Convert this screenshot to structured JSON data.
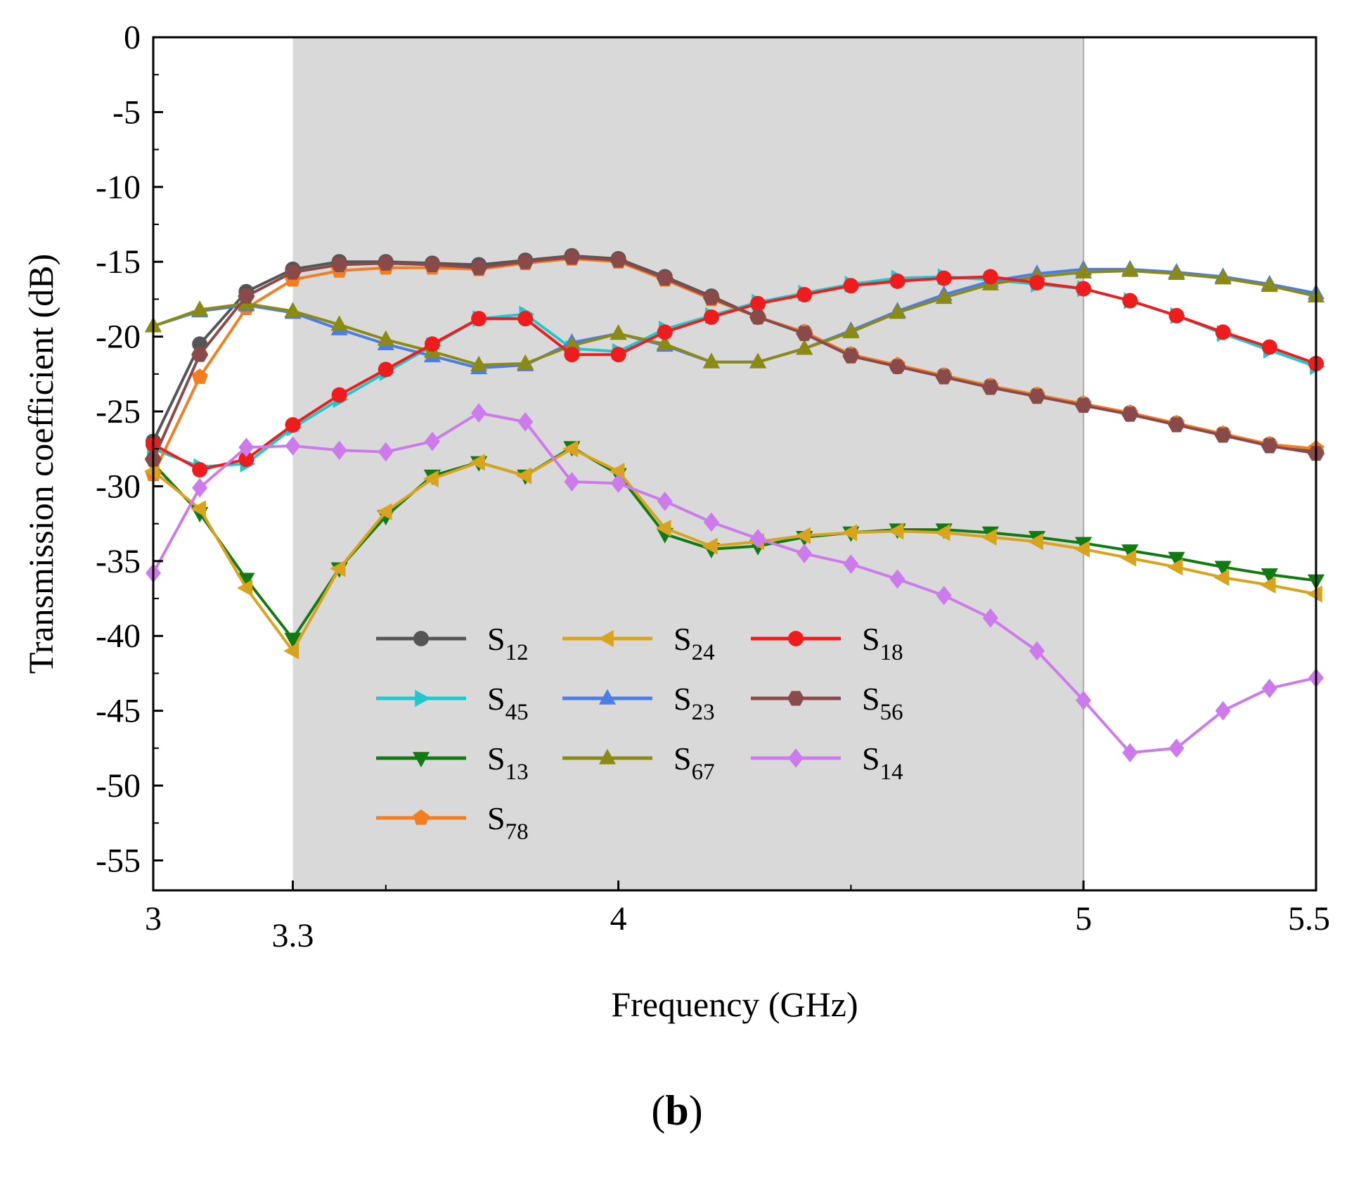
{
  "panel_label": {
    "open": "(",
    "letter": "b",
    "close": ")"
  },
  "chart_data": {
    "type": "line",
    "xlabel": "Frequency (GHz)",
    "ylabel": "Transmission coefficient (dB)",
    "xlim": [
      3,
      5.5
    ],
    "ylim": [
      -57,
      0
    ],
    "xticks": [
      3,
      3.3,
      4,
      5,
      5.5
    ],
    "xtick_labels": [
      "3",
      "3.3",
      "4",
      "5",
      "5.5"
    ],
    "yticks": [
      0,
      -5,
      -10,
      -15,
      -20,
      -25,
      -30,
      -35,
      -40,
      -45,
      -50,
      -55
    ],
    "ytick_labels": [
      "0",
      "-5",
      "-10",
      "-15",
      "-20",
      "-25",
      "-30",
      "-35",
      "-40",
      "-45",
      "-50",
      "-55"
    ],
    "shaded_band": [
      3.3,
      5.0
    ],
    "grid": false,
    "legend_placement": "lower-center",
    "x": [
      3.0,
      3.1,
      3.2,
      3.3,
      3.4,
      3.5,
      3.6,
      3.7,
      3.8,
      3.9,
      4.0,
      4.1,
      4.2,
      4.3,
      4.4,
      4.5,
      4.6,
      4.7,
      4.8,
      4.9,
      5.0,
      5.1,
      5.2,
      5.3,
      5.4,
      5.5
    ],
    "series": [
      {
        "name": "S",
        "sub": "12",
        "color": "#555555",
        "marker": "circle",
        "values": [
          -27.0,
          -20.5,
          -17.0,
          -15.5,
          -15.0,
          -15.0,
          -15.1,
          -15.2,
          -14.9,
          -14.6,
          -14.8,
          -16.0,
          -17.3,
          -18.7,
          -19.7,
          -21.2,
          -22.0,
          -22.6,
          -23.3,
          -23.9,
          -24.5,
          -25.1,
          -25.8,
          -26.5,
          -27.2,
          -27.7
        ]
      },
      {
        "name": "S",
        "sub": "45",
        "color": "#1ec8cc",
        "marker": "triangle-right",
        "values": [
          -27.5,
          -28.7,
          -28.5,
          -26.1,
          -24.2,
          -22.4,
          -20.6,
          -18.8,
          -18.5,
          -20.8,
          -21.0,
          -19.5,
          -18.6,
          -17.7,
          -17.1,
          -16.5,
          -16.1,
          -16.0,
          -16.2,
          -16.5,
          -16.8,
          -17.6,
          -18.6,
          -19.8,
          -20.9,
          -22.0
        ]
      },
      {
        "name": "S",
        "sub": "13",
        "color": "#127a12",
        "marker": "triangle-down",
        "values": [
          -28.5,
          -31.8,
          -36.2,
          -40.2,
          -35.5,
          -32.0,
          -29.3,
          -28.4,
          -29.3,
          -27.4,
          -29.2,
          -33.2,
          -34.2,
          -34.0,
          -33.4,
          -33.1,
          -32.9,
          -32.9,
          -33.1,
          -33.4,
          -33.8,
          -34.3,
          -34.8,
          -35.4,
          -35.9,
          -36.3
        ]
      },
      {
        "name": "S",
        "sub": "78",
        "color": "#f47d20",
        "marker": "pentagon",
        "values": [
          -29.2,
          -22.7,
          -18.1,
          -16.2,
          -15.6,
          -15.4,
          -15.4,
          -15.5,
          -15.1,
          -14.8,
          -15.0,
          -16.2,
          -17.5,
          -18.7,
          -19.7,
          -21.2,
          -21.9,
          -22.6,
          -23.3,
          -23.9,
          -24.5,
          -25.1,
          -25.8,
          -26.5,
          -27.2,
          -27.5
        ]
      },
      {
        "name": "S",
        "sub": "24",
        "color": "#d9a41c",
        "marker": "triangle-left",
        "values": [
          -29.0,
          -31.5,
          -36.8,
          -41.0,
          -35.5,
          -31.7,
          -29.5,
          -28.4,
          -29.3,
          -27.5,
          -29.0,
          -32.8,
          -34.0,
          -33.7,
          -33.3,
          -33.1,
          -33.0,
          -33.1,
          -33.4,
          -33.7,
          -34.2,
          -34.8,
          -35.4,
          -36.1,
          -36.6,
          -37.2
        ]
      },
      {
        "name": "S",
        "sub": "23",
        "color": "#4b7de6",
        "marker": "triangle-up",
        "values": [
          -19.3,
          -18.3,
          -17.9,
          -18.4,
          -19.5,
          -20.5,
          -21.3,
          -22.1,
          -21.9,
          -20.4,
          -19.8,
          -20.6,
          -21.7,
          -21.7,
          -20.8,
          -19.6,
          -18.3,
          -17.2,
          -16.3,
          -15.8,
          -15.5,
          -15.5,
          -15.7,
          -16.0,
          -16.5,
          -17.1
        ]
      },
      {
        "name": "S",
        "sub": "67",
        "color": "#8a8a14",
        "marker": "triangle-up",
        "values": [
          -19.3,
          -18.2,
          -17.8,
          -18.3,
          -19.2,
          -20.2,
          -21.0,
          -21.9,
          -21.8,
          -20.6,
          -19.8,
          -20.5,
          -21.7,
          -21.7,
          -20.8,
          -19.7,
          -18.4,
          -17.4,
          -16.5,
          -16.0,
          -15.7,
          -15.6,
          -15.8,
          -16.1,
          -16.6,
          -17.3
        ]
      },
      {
        "name": "S",
        "sub": "18",
        "color": "#ee1c1c",
        "marker": "circle",
        "values": [
          -27.2,
          -28.9,
          -28.2,
          -25.9,
          -23.9,
          -22.2,
          -20.5,
          -18.8,
          -18.8,
          -21.2,
          -21.2,
          -19.7,
          -18.7,
          -17.8,
          -17.2,
          -16.6,
          -16.3,
          -16.1,
          -16.0,
          -16.4,
          -16.8,
          -17.6,
          -18.6,
          -19.7,
          -20.7,
          -21.8
        ]
      },
      {
        "name": "S",
        "sub": "56",
        "color": "#8b4a4a",
        "marker": "hexagon",
        "values": [
          -28.2,
          -21.2,
          -17.3,
          -15.7,
          -15.2,
          -15.1,
          -15.2,
          -15.4,
          -15.0,
          -14.7,
          -14.9,
          -16.1,
          -17.4,
          -18.7,
          -19.8,
          -21.3,
          -22.0,
          -22.7,
          -23.4,
          -24.0,
          -24.6,
          -25.2,
          -25.9,
          -26.6,
          -27.3,
          -27.8
        ]
      },
      {
        "name": "S",
        "sub": "14",
        "color": "#cc7aec",
        "marker": "diamond",
        "values": [
          -35.8,
          -30.1,
          -27.4,
          -27.3,
          -27.6,
          -27.7,
          -27.0,
          -25.1,
          -25.7,
          -29.7,
          -29.8,
          -31.0,
          -32.4,
          -33.5,
          -34.5,
          -35.2,
          -36.2,
          -37.3,
          -38.8,
          -41.0,
          -44.3,
          -47.8,
          -47.5,
          -45.0,
          -43.5,
          -42.8
        ]
      }
    ],
    "legend_order": [
      0,
      4,
      7,
      1,
      5,
      8,
      2,
      6,
      9,
      3
    ]
  }
}
